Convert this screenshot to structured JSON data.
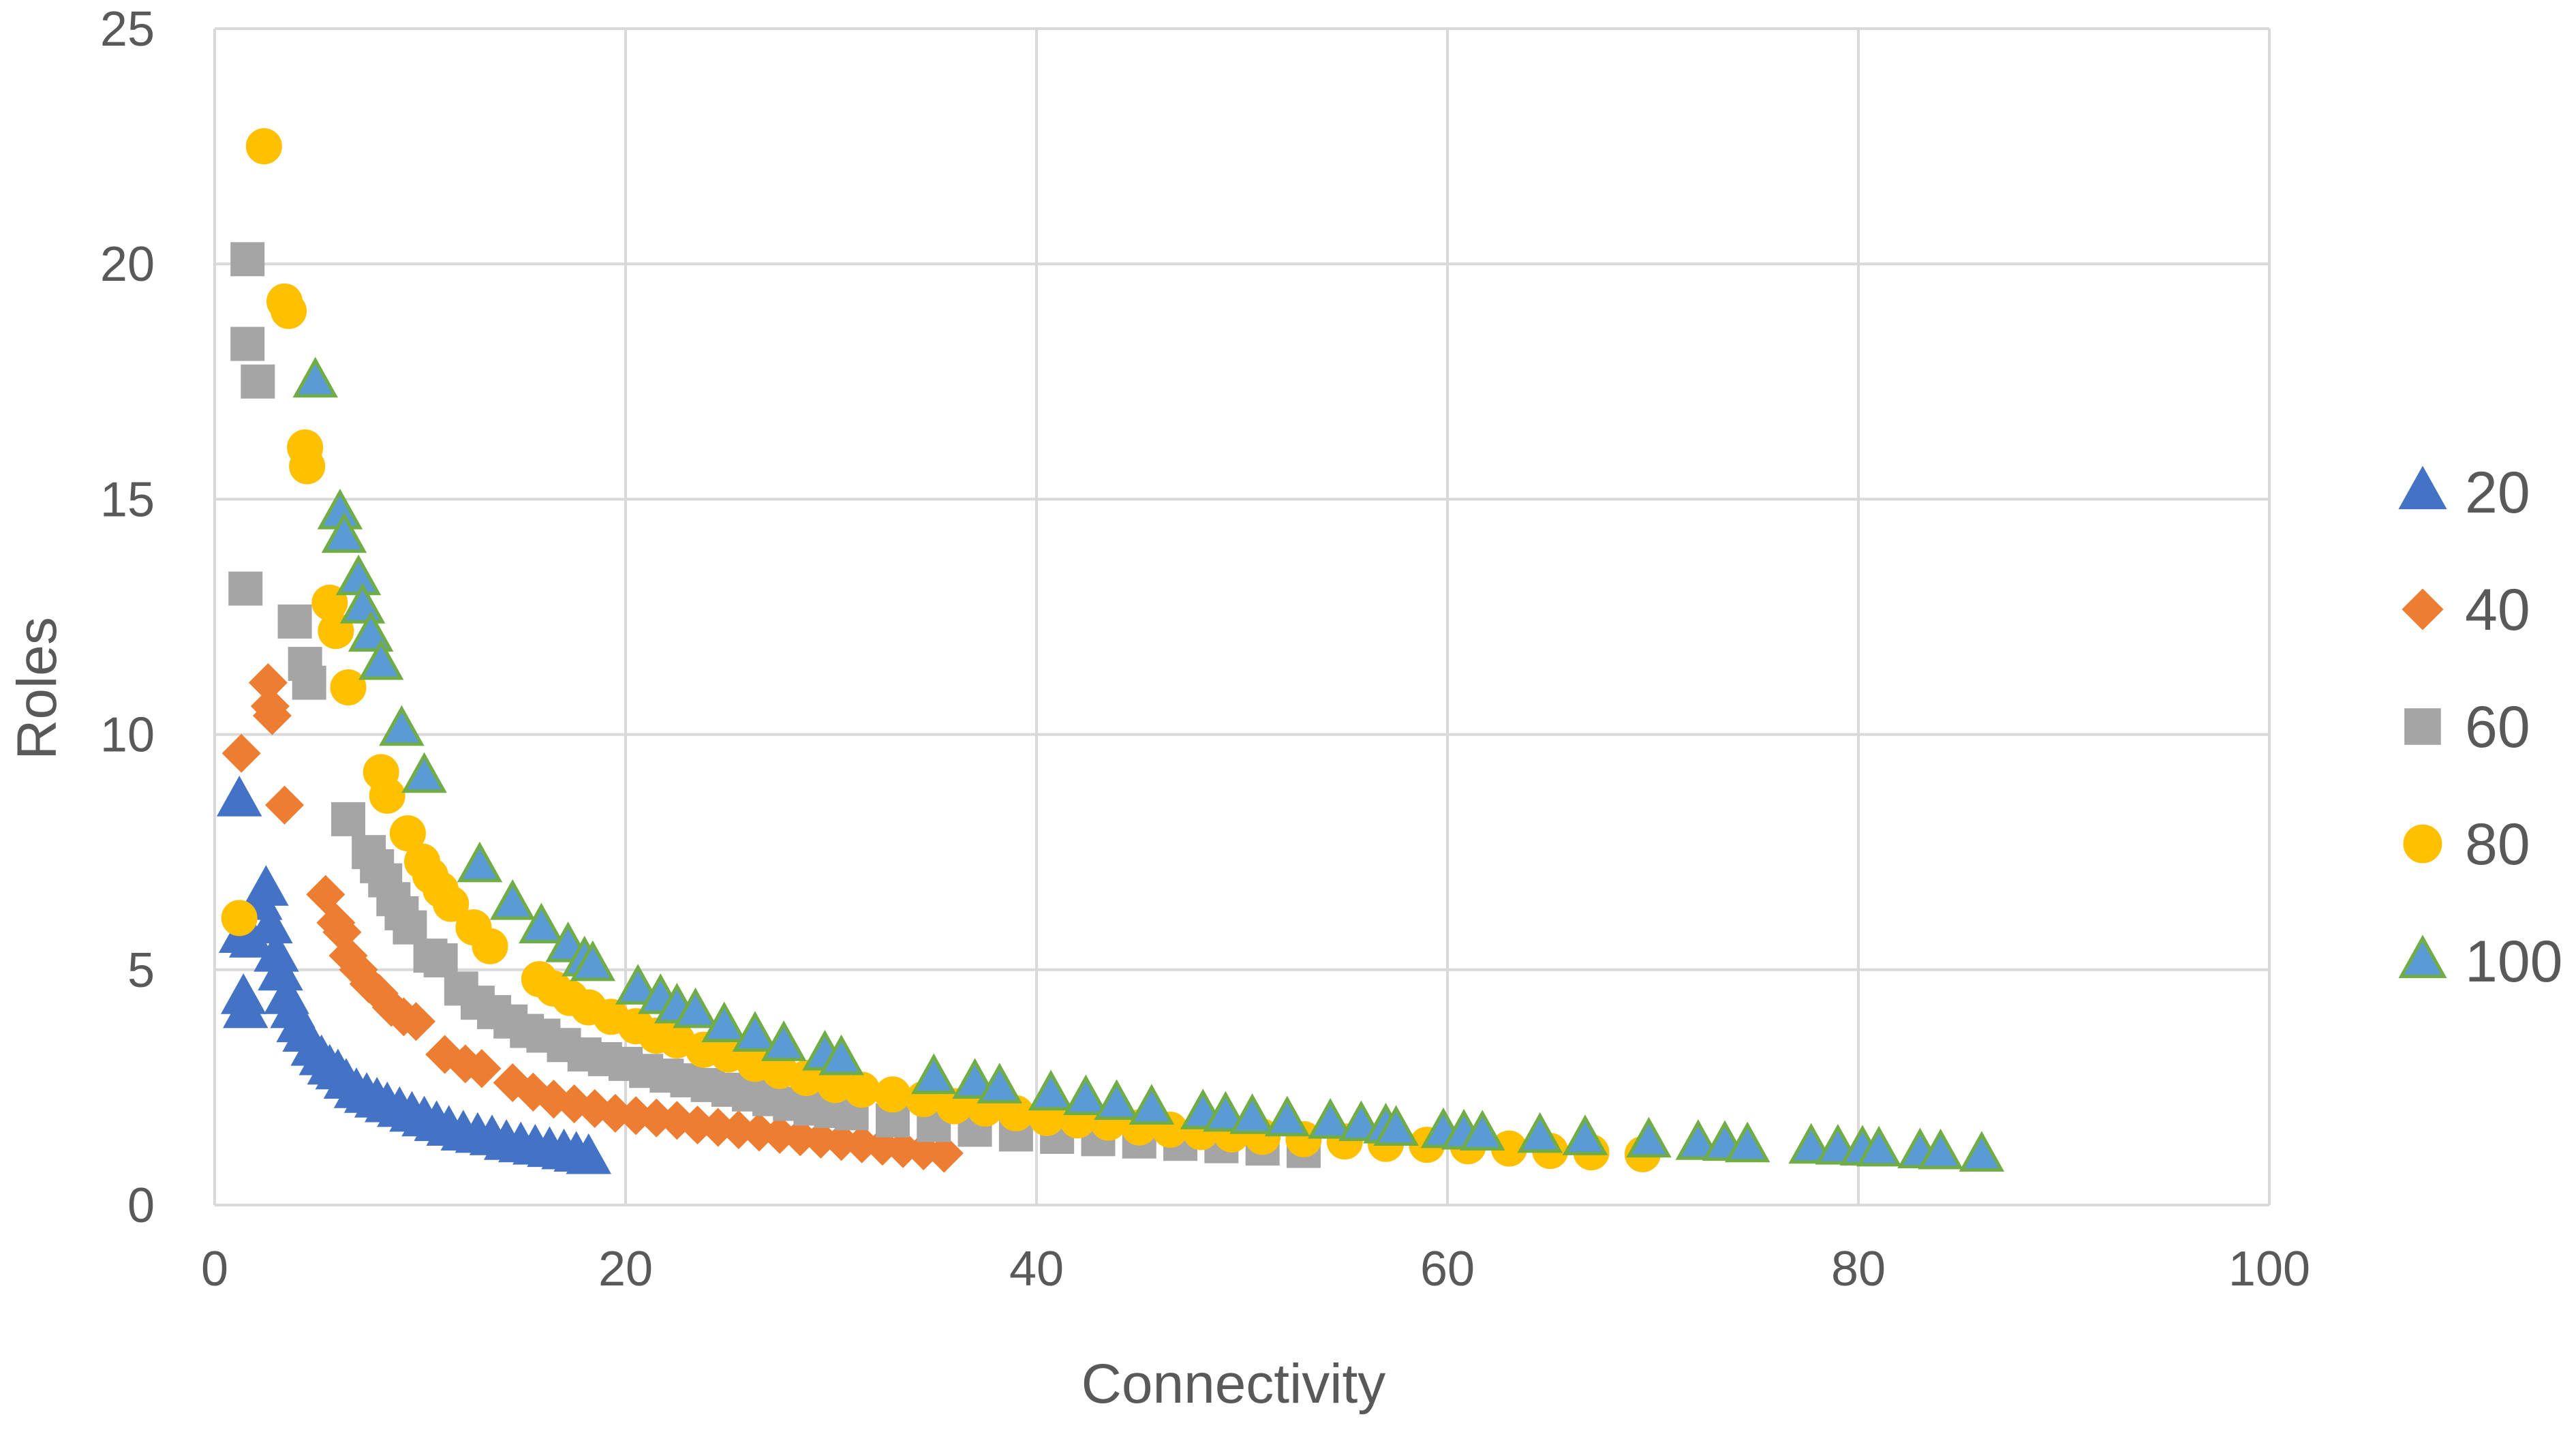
{
  "chart_data": {
    "type": "scatter",
    "title": "",
    "xlabel": "Connectivity",
    "ylabel": "Roles",
    "xlim": [
      0,
      100
    ],
    "ylim": [
      0,
      25
    ],
    "x_ticks": [
      0,
      20,
      40,
      60,
      80,
      100
    ],
    "y_ticks": [
      0,
      5,
      10,
      15,
      20,
      25
    ],
    "grid": true,
    "legend_position": "right",
    "series": [
      {
        "name": "20",
        "marker": "triangle",
        "color": "#4472C4",
        "edge_color": "#4472C4",
        "points": [
          [
            1.2,
            8.6
          ],
          [
            1.3,
            5.7
          ],
          [
            1.4,
            4.4
          ],
          [
            1.5,
            4.1
          ],
          [
            1.8,
            5.6
          ],
          [
            2.2,
            6.4
          ],
          [
            2.5,
            6.7
          ],
          [
            2.7,
            5.9
          ],
          [
            3.0,
            5.3
          ],
          [
            3.2,
            4.9
          ],
          [
            3.5,
            4.4
          ],
          [
            3.8,
            4.1
          ],
          [
            4.1,
            3.8
          ],
          [
            4.4,
            3.6
          ],
          [
            4.8,
            3.3
          ],
          [
            5.2,
            3.1
          ],
          [
            5.6,
            2.9
          ],
          [
            6.0,
            2.8
          ],
          [
            6.4,
            2.6
          ],
          [
            6.9,
            2.4
          ],
          [
            7.4,
            2.3
          ],
          [
            7.9,
            2.2
          ],
          [
            8.4,
            2.1
          ],
          [
            9.0,
            2.0
          ],
          [
            9.6,
            1.9
          ],
          [
            10.2,
            1.8
          ],
          [
            10.8,
            1.7
          ],
          [
            11.4,
            1.6
          ],
          [
            12.1,
            1.5
          ],
          [
            12.8,
            1.45
          ],
          [
            13.5,
            1.4
          ],
          [
            14.2,
            1.3
          ],
          [
            14.9,
            1.25
          ],
          [
            15.6,
            1.2
          ],
          [
            16.3,
            1.15
          ],
          [
            17.0,
            1.1
          ],
          [
            17.6,
            1.05
          ],
          [
            18.2,
            1.0
          ]
        ]
      },
      {
        "name": "40",
        "marker": "diamond",
        "color": "#ED7D31",
        "edge_color": "#ED7D31",
        "points": [
          [
            1.3,
            9.6
          ],
          [
            2.6,
            11.1
          ],
          [
            2.7,
            10.6
          ],
          [
            2.8,
            10.4
          ],
          [
            3.4,
            8.5
          ],
          [
            5.4,
            6.6
          ],
          [
            5.9,
            6.0
          ],
          [
            6.2,
            5.8
          ],
          [
            6.5,
            5.3
          ],
          [
            7.0,
            5.0
          ],
          [
            7.5,
            4.7
          ],
          [
            8.0,
            4.5
          ],
          [
            8.6,
            4.2
          ],
          [
            9.2,
            4.0
          ],
          [
            9.8,
            3.9
          ],
          [
            11.2,
            3.2
          ],
          [
            12.2,
            3.0
          ],
          [
            13.0,
            2.9
          ],
          [
            14.5,
            2.6
          ],
          [
            15.5,
            2.4
          ],
          [
            16.5,
            2.25
          ],
          [
            17.5,
            2.15
          ],
          [
            18.5,
            2.05
          ],
          [
            19.5,
            1.95
          ],
          [
            20.5,
            1.9
          ],
          [
            21.5,
            1.85
          ],
          [
            22.5,
            1.8
          ],
          [
            23.5,
            1.7
          ],
          [
            24.5,
            1.65
          ],
          [
            25.5,
            1.6
          ],
          [
            26.5,
            1.55
          ],
          [
            27.5,
            1.5
          ],
          [
            28.5,
            1.45
          ],
          [
            29.5,
            1.4
          ],
          [
            30.5,
            1.35
          ],
          [
            31.5,
            1.3
          ],
          [
            32.5,
            1.25
          ],
          [
            33.5,
            1.2
          ],
          [
            34.5,
            1.15
          ],
          [
            35.5,
            1.1
          ]
        ]
      },
      {
        "name": "60",
        "marker": "square",
        "color": "#A5A5A5",
        "edge_color": "#A5A5A5",
        "points": [
          [
            1.6,
            20.1
          ],
          [
            1.6,
            18.3
          ],
          [
            2.1,
            17.5
          ],
          [
            1.5,
            13.1
          ],
          [
            3.9,
            12.4
          ],
          [
            4.4,
            11.5
          ],
          [
            4.6,
            11.1
          ],
          [
            6.5,
            8.2
          ],
          [
            7.5,
            7.5
          ],
          [
            7.9,
            7.2
          ],
          [
            8.3,
            6.9
          ],
          [
            8.7,
            6.5
          ],
          [
            9.1,
            6.2
          ],
          [
            9.5,
            5.9
          ],
          [
            10.5,
            5.3
          ],
          [
            11.0,
            5.2
          ],
          [
            12.0,
            4.6
          ],
          [
            12.8,
            4.3
          ],
          [
            13.6,
            4.1
          ],
          [
            14.4,
            3.9
          ],
          [
            15.2,
            3.7
          ],
          [
            16.0,
            3.6
          ],
          [
            17.0,
            3.4
          ],
          [
            18.0,
            3.2
          ],
          [
            19.0,
            3.1
          ],
          [
            20.0,
            3.0
          ],
          [
            21.0,
            2.85
          ],
          [
            22.0,
            2.75
          ],
          [
            23.0,
            2.65
          ],
          [
            24.0,
            2.55
          ],
          [
            25.0,
            2.45
          ],
          [
            26.0,
            2.35
          ],
          [
            27.0,
            2.25
          ],
          [
            28.0,
            2.15
          ],
          [
            29.0,
            2.05
          ],
          [
            30.0,
            2.0
          ],
          [
            31.0,
            1.95
          ],
          [
            33.0,
            1.8
          ],
          [
            35.0,
            1.7
          ],
          [
            37.0,
            1.6
          ],
          [
            39.0,
            1.5
          ],
          [
            41.0,
            1.45
          ],
          [
            43.0,
            1.4
          ],
          [
            45.0,
            1.35
          ],
          [
            47.0,
            1.3
          ],
          [
            49.0,
            1.25
          ],
          [
            51.0,
            1.2
          ],
          [
            53.0,
            1.15
          ]
        ]
      },
      {
        "name": "80",
        "marker": "circle",
        "color": "#FFC000",
        "edge_color": "#FFC000",
        "points": [
          [
            1.2,
            6.1
          ],
          [
            2.4,
            22.5
          ],
          [
            3.4,
            19.2
          ],
          [
            3.6,
            19.0
          ],
          [
            4.4,
            16.1
          ],
          [
            4.5,
            15.7
          ],
          [
            5.6,
            12.8
          ],
          [
            5.9,
            12.2
          ],
          [
            6.5,
            11.0
          ],
          [
            8.1,
            9.2
          ],
          [
            8.4,
            8.7
          ],
          [
            9.4,
            7.9
          ],
          [
            10.1,
            7.3
          ],
          [
            10.5,
            7.0
          ],
          [
            11.0,
            6.7
          ],
          [
            11.5,
            6.4
          ],
          [
            12.6,
            5.9
          ],
          [
            13.4,
            5.5
          ],
          [
            15.8,
            4.8
          ],
          [
            16.5,
            4.6
          ],
          [
            17.3,
            4.4
          ],
          [
            18.2,
            4.2
          ],
          [
            19.3,
            4.0
          ],
          [
            20.5,
            3.8
          ],
          [
            21.5,
            3.6
          ],
          [
            22.5,
            3.5
          ],
          [
            23.8,
            3.3
          ],
          [
            25.0,
            3.2
          ],
          [
            26.3,
            3.0
          ],
          [
            27.5,
            2.85
          ],
          [
            28.8,
            2.7
          ],
          [
            30.2,
            2.55
          ],
          [
            31.5,
            2.45
          ],
          [
            33.0,
            2.35
          ],
          [
            34.5,
            2.25
          ],
          [
            36.0,
            2.1
          ],
          [
            37.5,
            2.05
          ],
          [
            39.0,
            1.95
          ],
          [
            40.5,
            1.85
          ],
          [
            42.0,
            1.8
          ],
          [
            43.5,
            1.75
          ],
          [
            45.0,
            1.65
          ],
          [
            46.5,
            1.6
          ],
          [
            48.0,
            1.55
          ],
          [
            49.5,
            1.5
          ],
          [
            51.0,
            1.45
          ],
          [
            53.0,
            1.4
          ],
          [
            55.0,
            1.35
          ],
          [
            57.0,
            1.3
          ],
          [
            59.0,
            1.28
          ],
          [
            61.0,
            1.25
          ],
          [
            63.0,
            1.2
          ],
          [
            65.0,
            1.15
          ],
          [
            67.0,
            1.12
          ],
          [
            69.5,
            1.08
          ]
        ]
      },
      {
        "name": "100",
        "marker": "triangle",
        "color": "#5B9BD5",
        "edge_color": "#70AD47",
        "points": [
          [
            4.9,
            17.5
          ],
          [
            6.1,
            14.7
          ],
          [
            6.3,
            14.2
          ],
          [
            7.0,
            13.3
          ],
          [
            7.2,
            12.7
          ],
          [
            7.6,
            12.1
          ],
          [
            8.1,
            11.5
          ],
          [
            9.1,
            10.1
          ],
          [
            10.2,
            9.1
          ],
          [
            12.9,
            7.2
          ],
          [
            14.5,
            6.4
          ],
          [
            15.9,
            5.9
          ],
          [
            17.2,
            5.5
          ],
          [
            18.0,
            5.2
          ],
          [
            18.4,
            5.1
          ],
          [
            20.6,
            4.6
          ],
          [
            21.7,
            4.4
          ],
          [
            22.5,
            4.2
          ],
          [
            23.4,
            4.1
          ],
          [
            24.8,
            3.8
          ],
          [
            26.3,
            3.6
          ],
          [
            27.7,
            3.4
          ],
          [
            29.7,
            3.2
          ],
          [
            30.5,
            3.1
          ],
          [
            35.0,
            2.7
          ],
          [
            37.0,
            2.6
          ],
          [
            38.2,
            2.5
          ],
          [
            40.7,
            2.35
          ],
          [
            42.4,
            2.25
          ],
          [
            43.9,
            2.15
          ],
          [
            45.6,
            2.05
          ],
          [
            48.1,
            1.95
          ],
          [
            49.2,
            1.9
          ],
          [
            50.5,
            1.85
          ],
          [
            52.2,
            1.8
          ],
          [
            54.3,
            1.75
          ],
          [
            55.8,
            1.7
          ],
          [
            57.0,
            1.65
          ],
          [
            57.5,
            1.6
          ],
          [
            59.8,
            1.55
          ],
          [
            60.8,
            1.52
          ],
          [
            61.7,
            1.5
          ],
          [
            64.5,
            1.45
          ],
          [
            66.7,
            1.4
          ],
          [
            69.8,
            1.35
          ],
          [
            72.2,
            1.3
          ],
          [
            73.5,
            1.28
          ],
          [
            74.6,
            1.25
          ],
          [
            77.7,
            1.22
          ],
          [
            79.0,
            1.2
          ],
          [
            80.2,
            1.18
          ],
          [
            81.0,
            1.16
          ],
          [
            83.0,
            1.12
          ],
          [
            84.0,
            1.1
          ],
          [
            86.0,
            1.05
          ]
        ]
      }
    ]
  }
}
